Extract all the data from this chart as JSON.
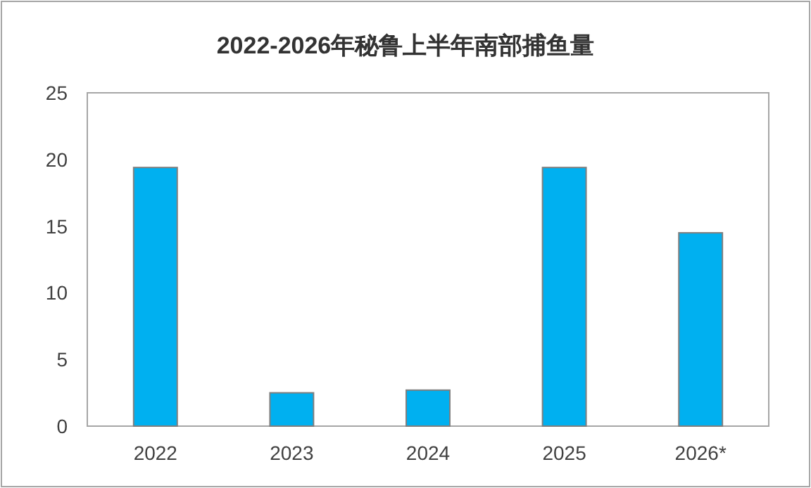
{
  "chart_data": {
    "type": "bar",
    "title": "2022-2026年秘鲁上半年南部捕鱼量",
    "categories": [
      "2022",
      "2023",
      "2024",
      "2025",
      "2026*"
    ],
    "values": [
      19.4,
      2.5,
      2.7,
      19.4,
      14.5
    ],
    "color": "#00b0f0",
    "ylim": [
      0,
      25
    ],
    "yticks": [
      0,
      5,
      10,
      15,
      20,
      25
    ],
    "grid": false
  }
}
